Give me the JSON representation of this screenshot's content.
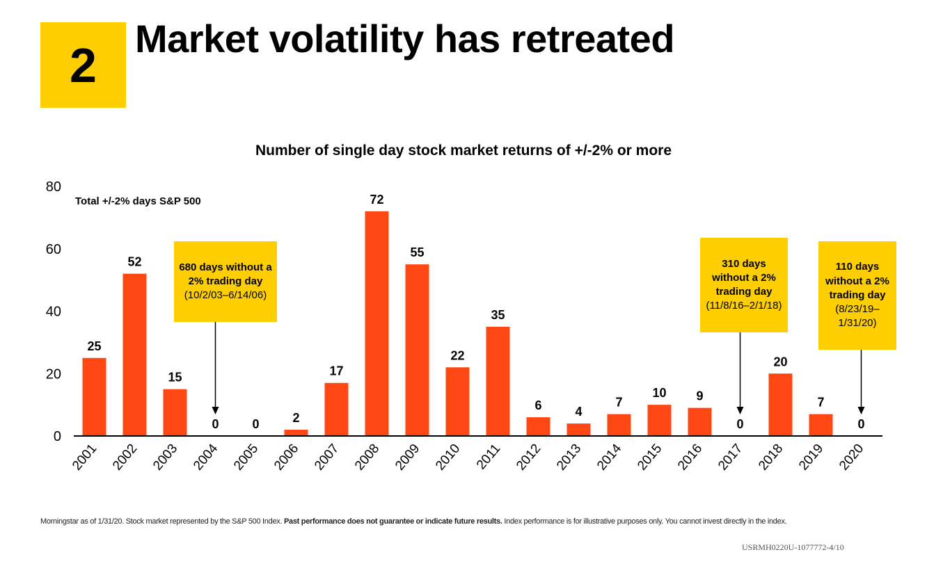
{
  "badge": {
    "number": "2"
  },
  "headline": "Market volatility has retreated",
  "chart_data": {
    "type": "bar",
    "title": "Number of single day stock market returns of +/-2% or more",
    "series_label": "Total +/-2% days S&P 500",
    "categories": [
      "2001",
      "2002",
      "2003",
      "2004",
      "2005",
      "2006",
      "2007",
      "2008",
      "2009",
      "2010",
      "2011",
      "2012",
      "2013",
      "2014",
      "2015",
      "2016",
      "2017",
      "2018",
      "2019",
      "2020"
    ],
    "values": [
      25,
      52,
      15,
      0,
      0,
      2,
      17,
      72,
      55,
      22,
      35,
      6,
      4,
      7,
      10,
      9,
      0,
      20,
      7,
      0
    ],
    "y_ticks": [
      "0",
      "20",
      "40",
      "60",
      "80"
    ],
    "ylim": [
      0,
      80
    ],
    "grid": false,
    "bar_color": "#FF4713",
    "callouts": [
      {
        "target": "2004",
        "bold": "680 days without a 2% trading day",
        "sub": "(10/2/03–6/14/06)"
      },
      {
        "target": "2017",
        "bold": "310 days without a 2% trading day",
        "sub": "(11/8/16–2/1/18)"
      },
      {
        "target": "2020",
        "bold": "110 days without a 2% trading day",
        "sub": "(8/23/19–1/31/20)"
      }
    ]
  },
  "footnote": {
    "part1": "Morningstar as of 1/31/20. Stock market represented by the S&P 500 Index. ",
    "bold": "Past performance does not guarantee or indicate future results.",
    "part2": " Index performance is for illustrative purposes only. You cannot invest directly in the index."
  },
  "doc_code": "USRMH0220U-1077772-4/10",
  "colors": {
    "accent_yellow": "#FFCE00",
    "bar": "#FF4713"
  }
}
